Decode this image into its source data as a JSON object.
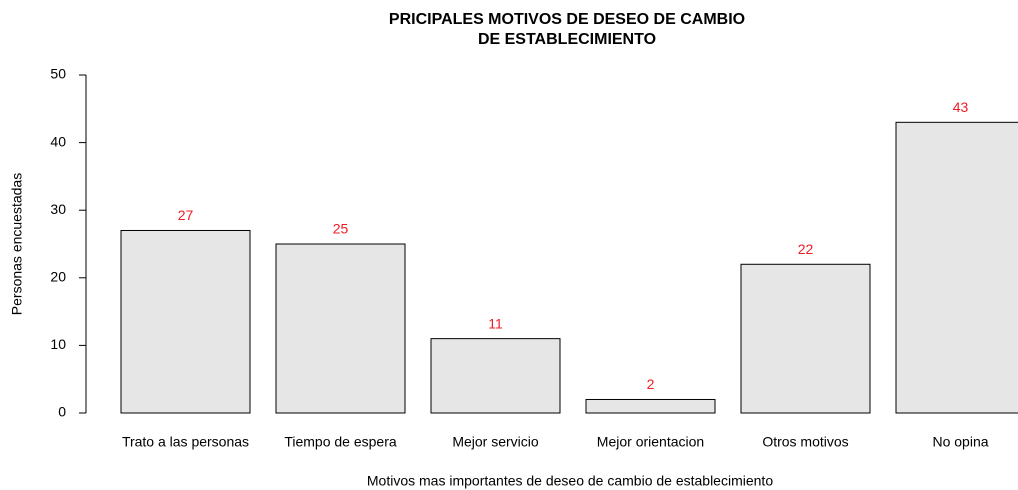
{
  "chart_data": {
    "type": "bar",
    "title": [
      "PRICIPALES MOTIVOS DE DESEO DE CAMBIO",
      "DE ESTABLECIMIENTO"
    ],
    "xlabel": "Motivos mas importantes de deseo de cambio de establecimiento",
    "ylabel": "Personas encuestadas",
    "categories": [
      "Trato a las personas",
      "Tiempo de espera",
      "Mejor servicio",
      "Mejor orientacion",
      "Otros motivos",
      "No opina"
    ],
    "values": [
      27,
      25,
      11,
      2,
      22,
      43
    ],
    "color": "#e6e6e6",
    "value_label_color": "#ee1c24",
    "ylim": [
      0,
      50
    ],
    "yticks": [
      0,
      10,
      20,
      30,
      40,
      50
    ],
    "grid": false
  }
}
